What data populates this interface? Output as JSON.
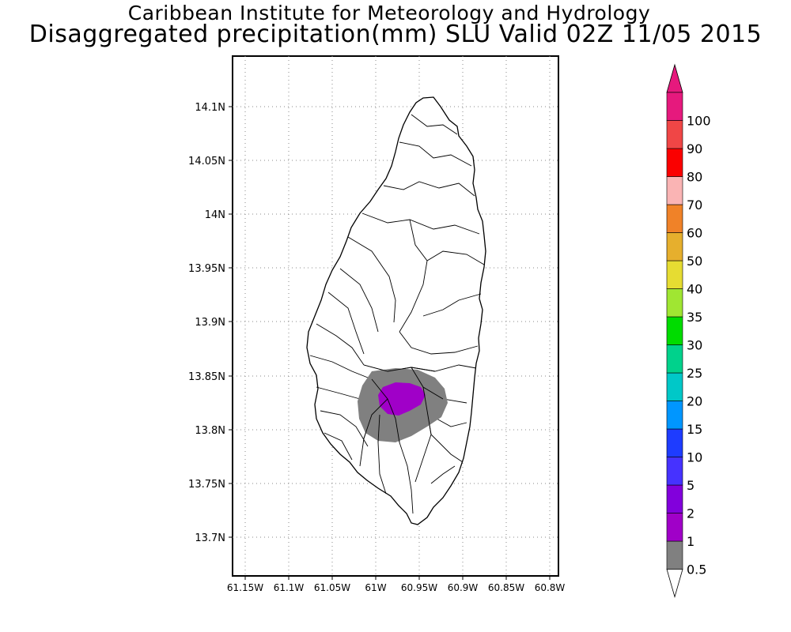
{
  "header": {
    "institute": "Caribbean Institute for Meteorology and Hydrology",
    "title": "Disaggregated precipitation(mm) SLU Valid 02Z 11/05 2015"
  },
  "map": {
    "lon_labels": [
      "61.15W",
      "61.1W",
      "61.05W",
      "61W",
      "60.95W",
      "60.9W",
      "60.85W",
      "60.8W"
    ],
    "lat_labels": [
      "14.1N",
      "14.05N",
      "14N",
      "13.95N",
      "13.9N",
      "13.85N",
      "13.8N",
      "13.75N",
      "13.7N"
    ],
    "island": "Saint Lucia",
    "gridlines": "dotted"
  },
  "legend": {
    "levels": [
      "0.5",
      "1",
      "2",
      "5",
      "10",
      "15",
      "20",
      "25",
      "30",
      "35",
      "40",
      "50",
      "60",
      "70",
      "80",
      "90",
      "100"
    ],
    "colors": [
      "#808080",
      "#a000c8",
      "#8200dc",
      "#4632ff",
      "#1e3cff",
      "#0096ff",
      "#00c8c8",
      "#00d28c",
      "#00dc00",
      "#a0e632",
      "#e6dc32",
      "#e6af2d",
      "#f08228",
      "#fab4b4",
      "#fa0000",
      "#f04646",
      "#e6197d"
    ],
    "bottom_arrow_color": "#ffffff",
    "top_arrow_color": "#e6197d"
  }
}
